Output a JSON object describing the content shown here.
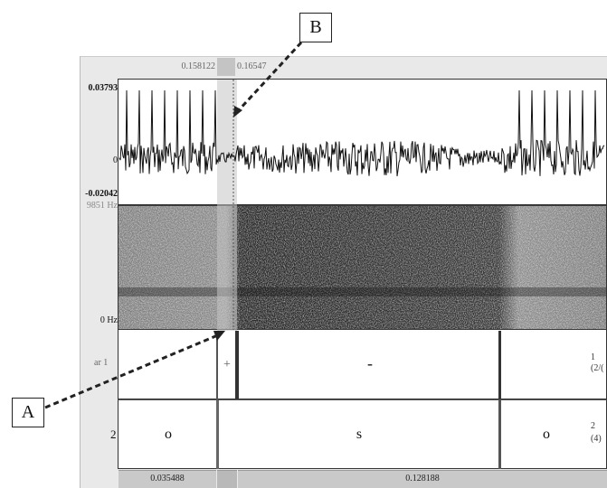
{
  "selection": {
    "start": "0.158122",
    "end": "0.16547"
  },
  "waveform": {
    "max": "0.03793",
    "zero": "0",
    "min": "-0.02042"
  },
  "spectrogram": {
    "max_freq": "9851 Hz",
    "min_freq": "0 Hz"
  },
  "tier1": {
    "name": "ar 1",
    "boundary_marker": "+",
    "interval_text": "-",
    "right_label_1": "1",
    "right_label_2": "(2/("
  },
  "tier2": {
    "name": "2",
    "intervals": [
      "o",
      "s",
      "o"
    ],
    "right_label_1": "2",
    "right_label_2": "(4)"
  },
  "durations": {
    "left": "0.035488",
    "right": "0.128188"
  },
  "callouts": {
    "a": "A",
    "b": "B"
  },
  "colors": {
    "selection": "#c4c4c4",
    "panel_border": "#333333",
    "dash": "#222222"
  }
}
